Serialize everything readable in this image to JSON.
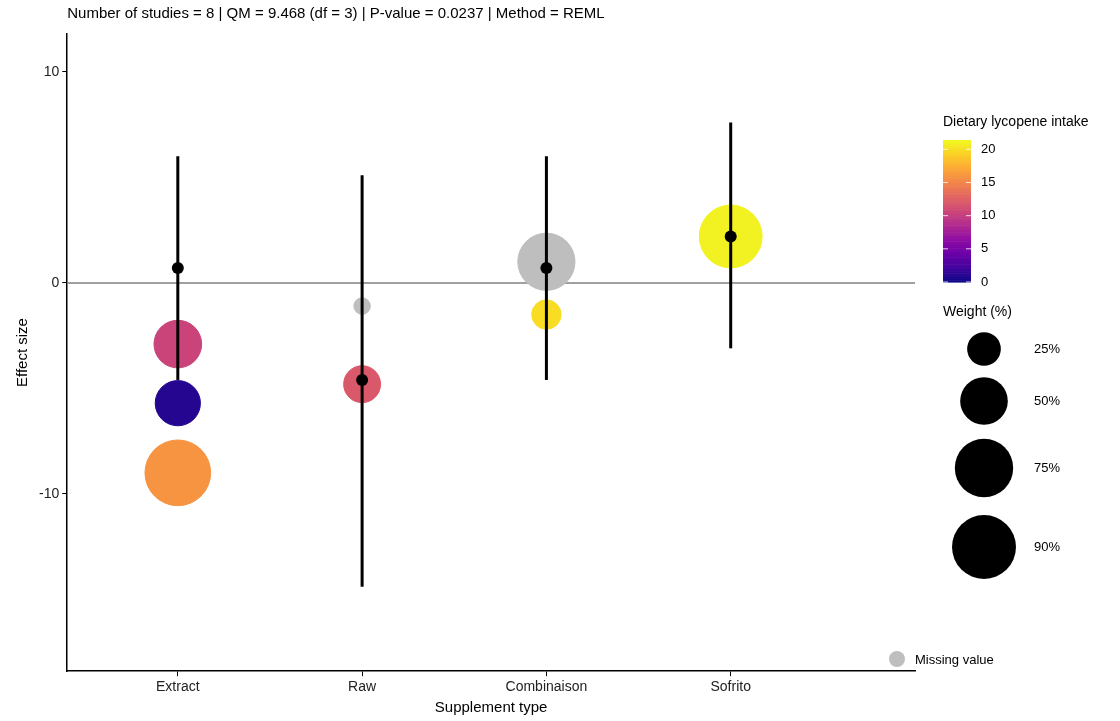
{
  "chart_data": {
    "type": "scatter",
    "title": "Number of studies = 8 | QM = 9.468 (df = 3) | P-value = 0.0237 | Method = REML",
    "xlabel": "Supplement type",
    "ylabel": "Effect size",
    "clabel": "Dietary lycopene intake",
    "legend_title": "Weight (%)",
    "categories": [
      "Extract",
      "Raw",
      "Combinaison",
      "Sofrito"
    ],
    "ylim": [
      -18.4,
      11.8
    ],
    "yticks": [
      -10,
      0,
      10
    ],
    "clim": [
      0,
      21.4
    ],
    "cticks": [
      0,
      5,
      10,
      15,
      20
    ],
    "size_legend": [
      {
        "value": 25,
        "label": "25%"
      },
      {
        "value": 50,
        "label": "50%"
      },
      {
        "value": 75,
        "label": "75%"
      },
      {
        "value": 90,
        "label": "90%"
      }
    ],
    "series": [
      {
        "type": "bubble",
        "x": [
          "Extract",
          "Extract",
          "Extract",
          "Raw",
          "Raw",
          "Combinaison",
          "Combinaison",
          "Sofrito"
        ],
        "values": [
          -2.9,
          -5.7,
          -9.0,
          -1.1,
          -4.8,
          1.0,
          -1.5,
          2.2
        ],
        "sizes": [
          50,
          45,
          95,
          6,
          30,
          72,
          19,
          87
        ],
        "cvalues": [
          10.5,
          1,
          16,
          null,
          12,
          null,
          20,
          21
        ],
        "colors": [
          "#ca447a",
          "#250691",
          "#f79441",
          "#bebebe",
          "#d9596b",
          "#bebebe",
          "#f8dd24",
          "#f2f122"
        ]
      },
      {
        "type": "scatter",
        "color": "#000000",
        "x": [
          "Extract",
          "Raw",
          "Combinaison",
          "Sofrito"
        ],
        "values": [
          0.7,
          -4.6,
          0.7,
          2.2
        ],
        "errors": [
          [
            -4.6,
            6.0
          ],
          [
            -14.4,
            5.1
          ],
          [
            -4.6,
            6.0
          ],
          [
            -3.1,
            7.6
          ]
        ]
      }
    ],
    "ref_lines": [
      {
        "axis": "y",
        "value": 0,
        "color": "#808080"
      }
    ],
    "annotations": [
      "Missing value"
    ],
    "marker": "circle",
    "grid": false
  }
}
